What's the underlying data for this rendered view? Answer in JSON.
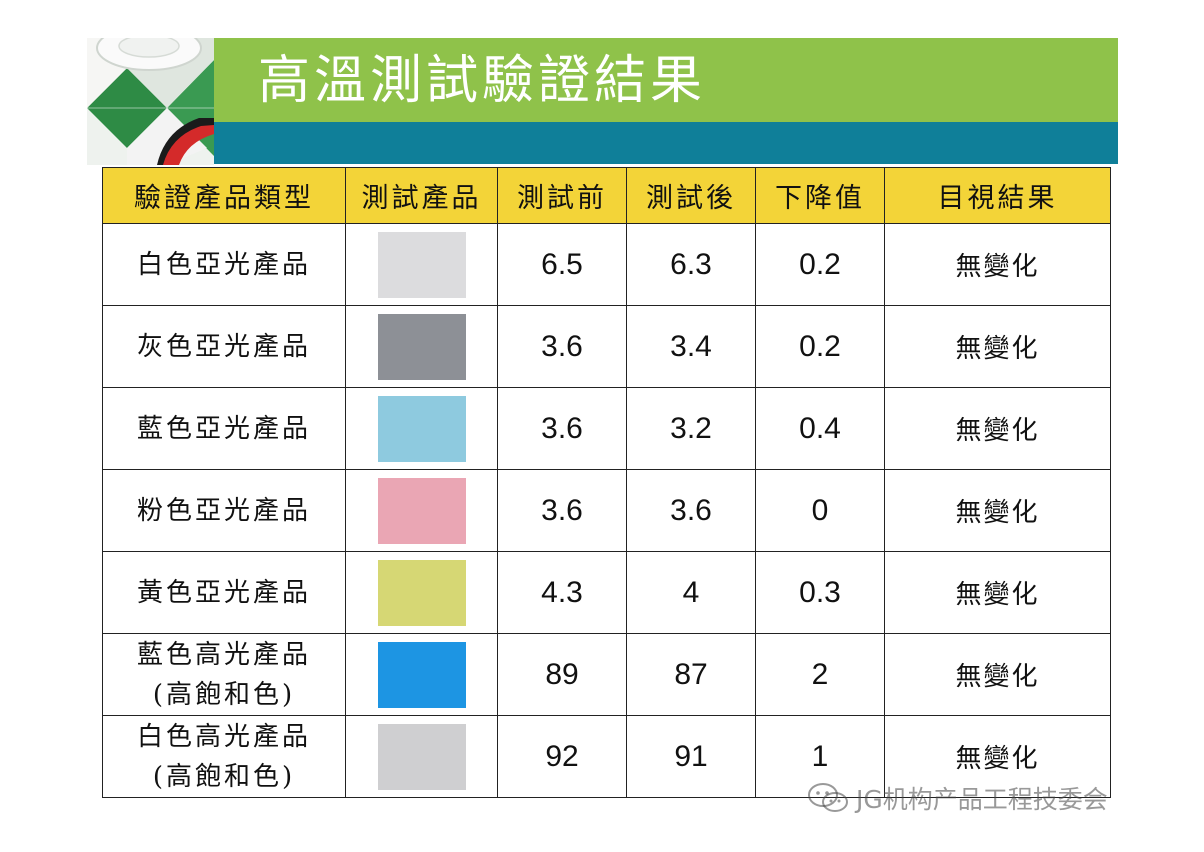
{
  "slide": {
    "title": "高溫測試驗證結果"
  },
  "table": {
    "headers": [
      "驗證產品類型",
      "測試產品",
      "測試前",
      "測試後",
      "下降值",
      "目視結果"
    ],
    "rows": [
      {
        "name": [
          "白色亞光產品"
        ],
        "swatch_color": "#dcdcde",
        "before": "6.5",
        "after": "6.3",
        "drop": "0.2",
        "visual": "無變化"
      },
      {
        "name": [
          "灰色亞光產品"
        ],
        "swatch_color": "#8d9096",
        "before": "3.6",
        "after": "3.4",
        "drop": "0.2",
        "visual": "無變化"
      },
      {
        "name": [
          "藍色亞光產品"
        ],
        "swatch_color": "#8ecadf",
        "before": "3.6",
        "after": "3.2",
        "drop": "0.4",
        "visual": "無變化"
      },
      {
        "name": [
          "粉色亞光產品"
        ],
        "swatch_color": "#eaa6b4",
        "before": "3.6",
        "after": "3.6",
        "drop": "0",
        "visual": "無變化"
      },
      {
        "name": [
          "黃色亞光產品"
        ],
        "swatch_color": "#d6d774",
        "before": "4.3",
        "after": "4",
        "drop": "0.3",
        "visual": "無變化"
      },
      {
        "name": [
          "藍色高光產品",
          "(高飽和色)"
        ],
        "swatch_color": "#1d95e3",
        "before": "89",
        "after": "87",
        "drop": "2",
        "visual": "無變化"
      },
      {
        "name": [
          "白色高光產品",
          "(高飽和色)"
        ],
        "swatch_color": "#cfcfd1",
        "before": "92",
        "after": "91",
        "drop": "1",
        "visual": "無變化"
      }
    ]
  },
  "watermark": {
    "text": "JG机构产品工程技委会",
    "icon": "wechat-icon"
  },
  "colors": {
    "header_green": "#8fc24a",
    "header_blue": "#0f7f99",
    "table_header": "#f3d438"
  }
}
